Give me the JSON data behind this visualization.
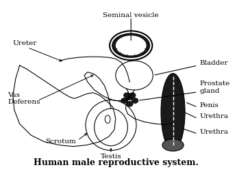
{
  "title": "Human male reproductive system.",
  "labels": {
    "seminal_vesicle": "Seminal vesicle",
    "ureter": "Ureter",
    "bladder": "Bladder",
    "prostate_gland": "Prostate\ngland",
    "penis": "Penis",
    "urethra1": "Urethra",
    "urethra2": "Urethra",
    "vas_deferens": "Vas\nDeferens",
    "scrotum": "Scrotum",
    "testis": "Testis"
  },
  "bg_color": "#ffffff",
  "line_color": "#000000",
  "title_fontsize": 9,
  "label_fontsize": 7.5
}
